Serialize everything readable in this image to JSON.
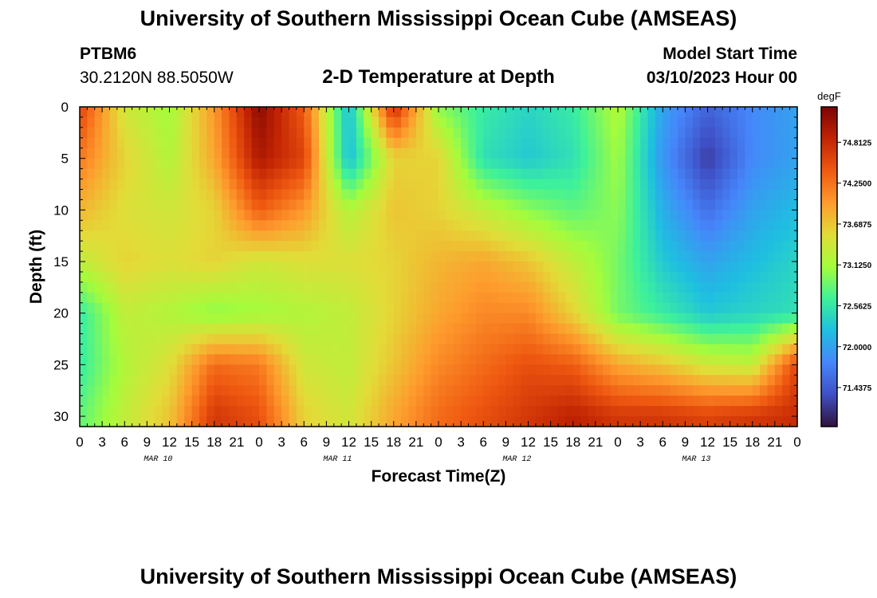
{
  "header": {
    "title": "University of Southern Mississippi Ocean Cube (AMSEAS)",
    "station": "PTBM6",
    "coords": "30.2120N  88.5050W",
    "subtitle": "2-D Temperature at Depth",
    "model_start_label": "Model Start Time",
    "model_start_value": "03/10/2023 Hour 00"
  },
  "footer": {
    "title": "University of Southern Mississippi Ocean Cube (AMSEAS)"
  },
  "chart_data": {
    "type": "heatmap",
    "title": "2-D Temperature at Depth",
    "xlabel": "Forecast Time(Z)",
    "ylabel": "Depth (ft)",
    "x_tick_labels": [
      "0",
      "3",
      "6",
      "9",
      "12",
      "15",
      "18",
      "21",
      "0",
      "3",
      "6",
      "9",
      "12",
      "15",
      "18",
      "21",
      "0",
      "3",
      "6",
      "9",
      "12",
      "15",
      "18",
      "21",
      "0",
      "3",
      "6",
      "9",
      "12",
      "15",
      "18",
      "21",
      "0"
    ],
    "date_labels": [
      "MAR 10",
      "MAR 11",
      "MAR 12",
      "MAR 13"
    ],
    "y_tick_labels": [
      "0",
      "5",
      "10",
      "15",
      "20",
      "25",
      "30"
    ],
    "ylim": [
      0,
      31
    ],
    "y_reversed": true,
    "x_range_hours": [
      0,
      96
    ],
    "colorbar": {
      "unit": "degF",
      "tick_labels": [
        "74.8125",
        "74.2500",
        "73.6875",
        "73.1250",
        "72.5625",
        "72.0000",
        "71.4375"
      ],
      "range": [
        70.9,
        75.3
      ],
      "colors": [
        "#30123b",
        "#3f4fc5",
        "#4686fb",
        "#1ebfe0",
        "#3ef19a",
        "#a4fc3c",
        "#e2dc38",
        "#fe9b2d",
        "#ef5911",
        "#c22403",
        "#7a0403"
      ]
    },
    "grid": false,
    "legend": "colorbar-right",
    "depth_levels": [
      0,
      5,
      10,
      15,
      20,
      25,
      30
    ],
    "time_hours": [
      0,
      6,
      12,
      18,
      24,
      30,
      36,
      42,
      48,
      54,
      60,
      66,
      72,
      78,
      84,
      90,
      96
    ],
    "temperature_degF": [
      [
        74.6,
        73.4,
        73.1,
        74.0,
        75.2,
        74.4,
        72.2,
        74.8,
        73.0,
        72.6,
        72.4,
        72.6,
        73.2,
        72.0,
        71.5,
        71.8,
        72.0
      ],
      [
        74.2,
        73.6,
        73.2,
        73.9,
        75.0,
        74.6,
        72.2,
        73.6,
        73.6,
        72.5,
        72.3,
        72.5,
        73.1,
        71.9,
        71.2,
        71.8,
        72.0
      ],
      [
        73.8,
        73.5,
        73.4,
        73.6,
        74.4,
        74.0,
        73.2,
        73.7,
        73.6,
        73.3,
        73.0,
        72.8,
        73.0,
        72.1,
        71.6,
        72.0,
        72.2
      ],
      [
        73.3,
        73.6,
        73.5,
        73.6,
        73.4,
        73.5,
        73.5,
        73.6,
        73.8,
        73.9,
        73.7,
        73.3,
        72.9,
        72.3,
        72.0,
        72.2,
        72.4
      ],
      [
        72.6,
        73.3,
        73.2,
        73.0,
        73.1,
        73.2,
        73.3,
        73.6,
        73.9,
        74.1,
        74.1,
        73.6,
        72.9,
        72.6,
        72.3,
        72.4,
        72.5
      ],
      [
        72.6,
        73.2,
        73.5,
        74.3,
        74.2,
        73.4,
        73.3,
        73.7,
        74.1,
        74.3,
        74.5,
        74.4,
        73.9,
        73.7,
        73.4,
        73.3,
        74.6
      ],
      [
        72.8,
        73.3,
        73.7,
        74.7,
        74.5,
        73.6,
        73.4,
        73.9,
        74.3,
        74.5,
        74.7,
        74.9,
        74.7,
        74.7,
        74.6,
        74.7,
        74.8
      ]
    ]
  }
}
